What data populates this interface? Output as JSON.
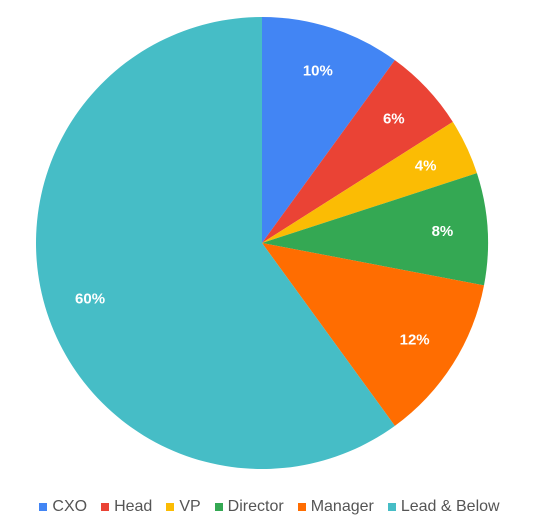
{
  "chart_data": {
    "type": "pie",
    "title": "",
    "categories": [
      "CXO",
      "Head",
      "VP",
      "Director",
      "Manager",
      "Lead & Below"
    ],
    "values": [
      10,
      6,
      4,
      8,
      12,
      60
    ],
    "labels": [
      "10%",
      "6%",
      "4%",
      "8%",
      "12%",
      "60%"
    ],
    "colors": [
      "#4285f4",
      "#ea4335",
      "#fbbc04",
      "#34a853",
      "#ff6d01",
      "#46bdc6"
    ],
    "start": "12 o'clock",
    "direction": "clockwise",
    "legend_position": "bottom"
  }
}
